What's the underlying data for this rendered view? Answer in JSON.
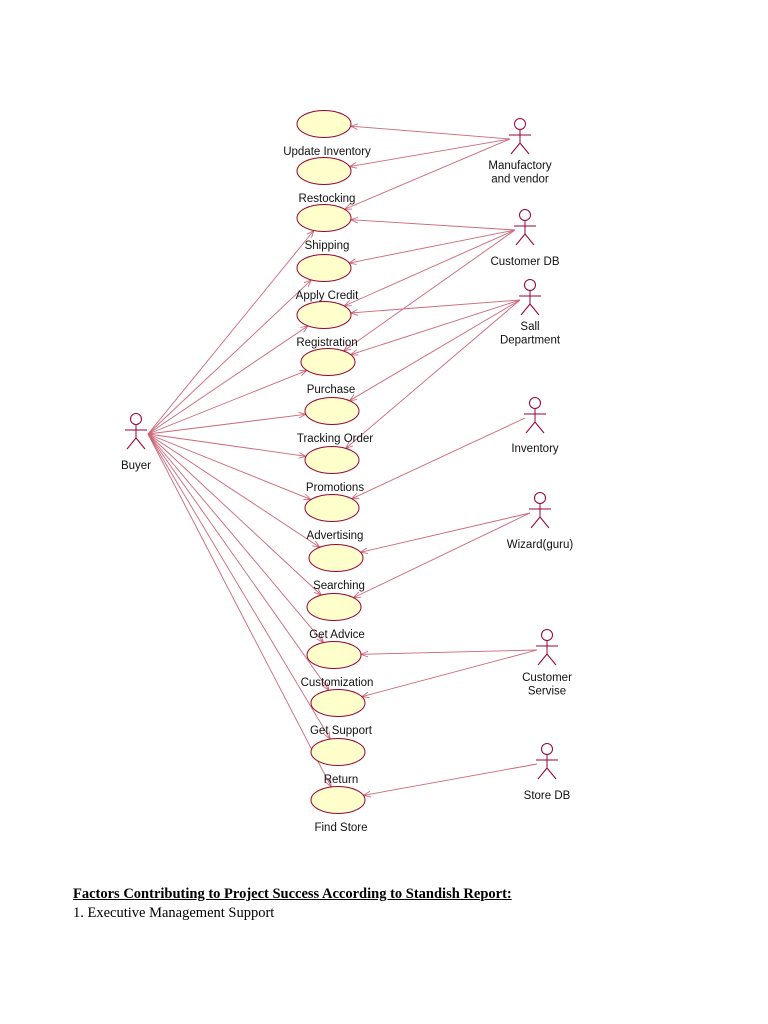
{
  "diagram": {
    "type": "uml-use-case",
    "use_cases": [
      {
        "id": "update_inventory",
        "label": "Update Inventory"
      },
      {
        "id": "restocking",
        "label": "Restocking"
      },
      {
        "id": "shipping",
        "label": "Shipping"
      },
      {
        "id": "apply_credit",
        "label": "Apply Credit"
      },
      {
        "id": "registration",
        "label": "Registration"
      },
      {
        "id": "purchase",
        "label": "Purchase"
      },
      {
        "id": "tracking_order",
        "label": "Tracking Order"
      },
      {
        "id": "promotions",
        "label": "Promotions"
      },
      {
        "id": "advertising",
        "label": "Advertising"
      },
      {
        "id": "searching",
        "label": "Searching"
      },
      {
        "id": "get_advice",
        "label": "Get Advice"
      },
      {
        "id": "customization",
        "label": "Customization"
      },
      {
        "id": "get_support",
        "label": "Get Support"
      },
      {
        "id": "return",
        "label": "Return"
      },
      {
        "id": "find_store",
        "label": "Find Store"
      }
    ],
    "actors": [
      {
        "id": "buyer",
        "label": "Buyer"
      },
      {
        "id": "manufactory",
        "label": "Manufactory\nand vendor"
      },
      {
        "id": "customer_db",
        "label": "Customer DB"
      },
      {
        "id": "sall_department",
        "label": "Sall\nDepartment"
      },
      {
        "id": "inventory",
        "label": "Inventory"
      },
      {
        "id": "wizard",
        "label": "Wizard(guru)"
      },
      {
        "id": "customer_servise",
        "label": "Customer\nServise"
      },
      {
        "id": "store_db",
        "label": "Store DB"
      }
    ],
    "associations": [
      {
        "from": "buyer",
        "to": "shipping"
      },
      {
        "from": "buyer",
        "to": "apply_credit"
      },
      {
        "from": "buyer",
        "to": "registration"
      },
      {
        "from": "buyer",
        "to": "purchase"
      },
      {
        "from": "buyer",
        "to": "tracking_order"
      },
      {
        "from": "buyer",
        "to": "promotions"
      },
      {
        "from": "buyer",
        "to": "advertising"
      },
      {
        "from": "buyer",
        "to": "searching"
      },
      {
        "from": "buyer",
        "to": "get_advice"
      },
      {
        "from": "buyer",
        "to": "customization"
      },
      {
        "from": "buyer",
        "to": "get_support"
      },
      {
        "from": "buyer",
        "to": "return"
      },
      {
        "from": "buyer",
        "to": "find_store"
      },
      {
        "from": "manufactory",
        "to": "update_inventory"
      },
      {
        "from": "manufactory",
        "to": "restocking"
      },
      {
        "from": "manufactory",
        "to": "shipping"
      },
      {
        "from": "customer_db",
        "to": "shipping"
      },
      {
        "from": "customer_db",
        "to": "apply_credit"
      },
      {
        "from": "customer_db",
        "to": "registration"
      },
      {
        "from": "customer_db",
        "to": "purchase"
      },
      {
        "from": "sall_department",
        "to": "registration"
      },
      {
        "from": "sall_department",
        "to": "purchase"
      },
      {
        "from": "sall_department",
        "to": "tracking_order"
      },
      {
        "from": "sall_department",
        "to": "promotions"
      },
      {
        "from": "inventory",
        "to": "advertising"
      },
      {
        "from": "wizard",
        "to": "searching"
      },
      {
        "from": "wizard",
        "to": "get_advice"
      },
      {
        "from": "customer_servise",
        "to": "customization"
      },
      {
        "from": "customer_servise",
        "to": "get_support"
      },
      {
        "from": "store_db",
        "to": "find_store"
      }
    ],
    "colors": {
      "ellipse_fill": "#ffffcc",
      "stroke": "#990033",
      "line": "#cc6677"
    }
  },
  "document": {
    "heading": "Factors Contributing to Project Success According to Standish Report:",
    "items": [
      "1. Executive Management Support"
    ]
  }
}
